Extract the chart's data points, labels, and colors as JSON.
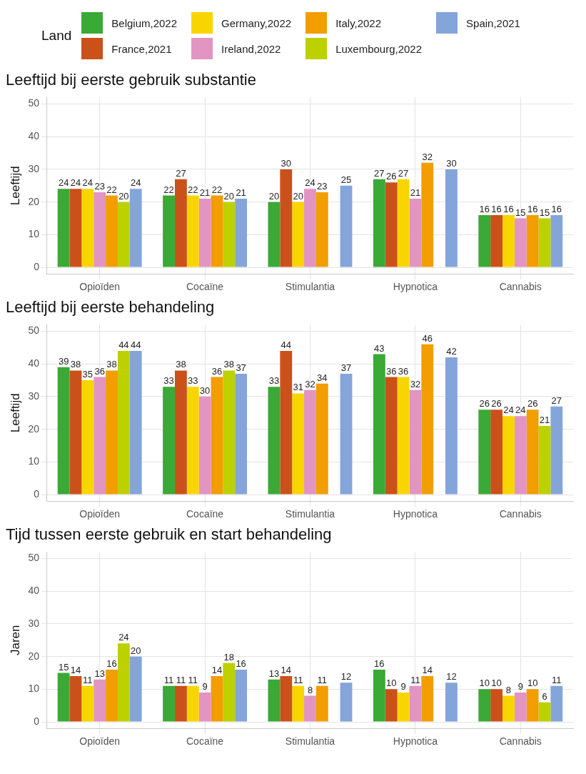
{
  "chart_data": [
    {
      "type": "bar",
      "title": "Leeftijd bij eerste gebruik substantie",
      "ylabel": "Leeftijd",
      "legend": "top",
      "legend_title": "Land",
      "categories": [
        "Opioïden",
        "Cocaïne",
        "Stimulantia",
        "Hypnotica",
        "Cannabis"
      ],
      "ylim": [
        -2,
        52
      ],
      "yticks": [
        0,
        10,
        20,
        30,
        40,
        50
      ],
      "grid": true,
      "data_labels": true,
      "series": [
        {
          "name": "Belgium,2022",
          "color": "#3aa935",
          "values": [
            24,
            22,
            20,
            27,
            16
          ]
        },
        {
          "name": "France,2021",
          "color": "#cb511a",
          "values": [
            24,
            27,
            30,
            26,
            16
          ]
        },
        {
          "name": "Germany,2022",
          "color": "#f9d500",
          "values": [
            24,
            22,
            20,
            27,
            16
          ]
        },
        {
          "name": "Ireland,2022",
          "color": "#e294c2",
          "values": [
            23,
            21,
            24,
            21,
            15
          ]
        },
        {
          "name": "Italy,2022",
          "color": "#f29d00",
          "values": [
            22,
            22,
            23,
            32,
            16
          ]
        },
        {
          "name": "Luxembourg,2022",
          "color": "#bdd000",
          "values": [
            20,
            20,
            null,
            null,
            15
          ]
        },
        {
          "name": "Spain,2021",
          "color": "#84a5da",
          "values": [
            24,
            21,
            25,
            30,
            16
          ]
        }
      ]
    },
    {
      "type": "bar",
      "title": "Leeftijd bij eerste behandeling",
      "ylabel": "Leeftijd",
      "categories": [
        "Opioïden",
        "Cocaïne",
        "Stimulantia",
        "Hypnotica",
        "Cannabis"
      ],
      "ylim": [
        -2,
        52
      ],
      "yticks": [
        0,
        10,
        20,
        30,
        40,
        50
      ],
      "grid": true,
      "data_labels": true,
      "series": [
        {
          "color": "#3aa935",
          "values": [
            39,
            33,
            33,
            43,
            26
          ]
        },
        {
          "color": "#cb511a",
          "values": [
            38,
            38,
            44,
            36,
            26
          ]
        },
        {
          "color": "#f9d500",
          "values": [
            35,
            33,
            31,
            36,
            24
          ]
        },
        {
          "color": "#e294c2",
          "values": [
            36,
            30,
            32,
            32,
            24
          ]
        },
        {
          "color": "#f29d00",
          "values": [
            38,
            36,
            34,
            46,
            26
          ]
        },
        {
          "color": "#bdd000",
          "values": [
            44,
            38,
            null,
            null,
            21
          ]
        },
        {
          "color": "#84a5da",
          "values": [
            44,
            37,
            37,
            42,
            27
          ]
        }
      ]
    },
    {
      "type": "bar",
      "title": "Tijd tussen eerste gebruik en start behandeling",
      "ylabel": "Jaren",
      "categories": [
        "Opioïden",
        "Cocaïne",
        "Stimulantia",
        "Hypnotica",
        "Cannabis"
      ],
      "ylim": [
        -2,
        52
      ],
      "yticks": [
        0,
        10,
        20,
        30,
        40,
        50
      ],
      "grid": true,
      "data_labels": true,
      "series": [
        {
          "color": "#3aa935",
          "values": [
            15,
            11,
            13,
            16,
            10
          ]
        },
        {
          "color": "#cb511a",
          "values": [
            14,
            11,
            14,
            10,
            10
          ]
        },
        {
          "color": "#f9d500",
          "values": [
            11,
            11,
            11,
            9,
            8
          ]
        },
        {
          "color": "#e294c2",
          "values": [
            13,
            9,
            8,
            11,
            9
          ]
        },
        {
          "color": "#f29d00",
          "values": [
            16,
            14,
            11,
            14,
            10
          ]
        },
        {
          "color": "#bdd000",
          "values": [
            24,
            18,
            null,
            null,
            6
          ]
        },
        {
          "color": "#84a5da",
          "values": [
            20,
            16,
            12,
            12,
            11
          ]
        }
      ]
    }
  ]
}
